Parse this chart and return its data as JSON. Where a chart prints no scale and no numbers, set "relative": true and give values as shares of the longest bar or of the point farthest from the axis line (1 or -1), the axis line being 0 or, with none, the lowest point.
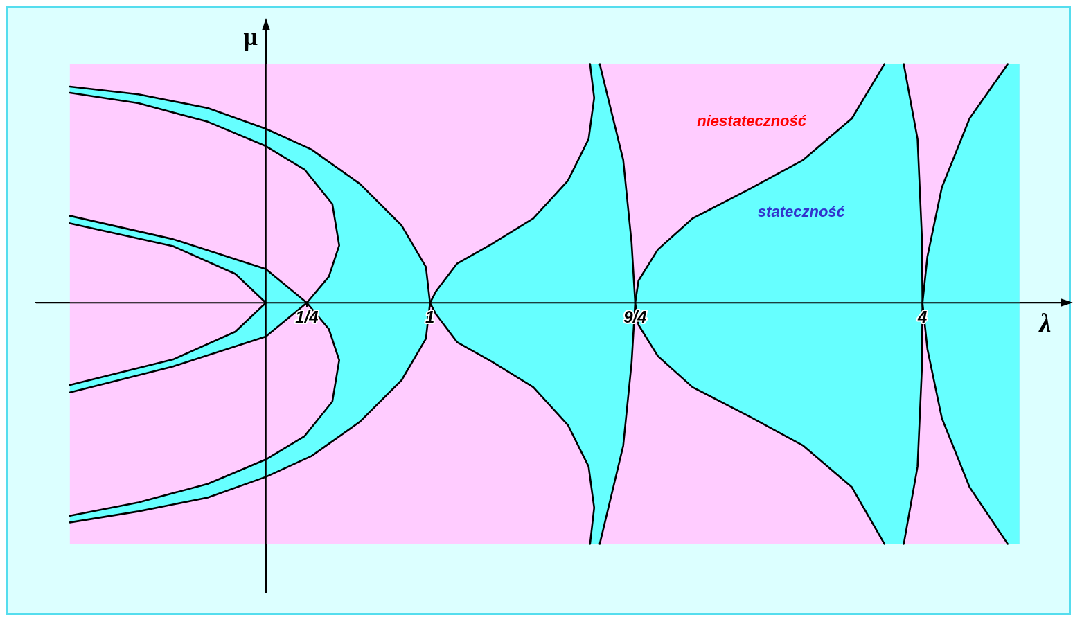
{
  "chart_data": {
    "type": "area",
    "relative": true,
    "xlabel": "λ",
    "ylabel": "μ",
    "xlim": [
      -1.4,
      4.9
    ],
    "ylim": [
      -1.2,
      1.17
    ],
    "xticks": [
      {
        "value": 0.25,
        "label": "1/4"
      },
      {
        "value": 1,
        "label": "1"
      },
      {
        "value": 2.25,
        "label": "9/4"
      },
      {
        "value": 4,
        "label": "4"
      }
    ],
    "grid": false,
    "legend": false,
    "marker": "none",
    "annotations": [
      "niestateczność",
      "stateczność"
    ],
    "series": [
      {
        "color": "#ffccff",
        "x": [
          -1.194,
          4.591,
          4.591,
          -1.194
        ],
        "values": [
          0.99,
          0.99,
          -1,
          -1
        ]
      },
      {
        "color": "#66ffff",
        "x": [
          -1.194,
          -0.776,
          -0.354,
          0,
          0.278,
          0.574,
          0.827,
          0.975,
          1,
          0.975,
          0.827,
          0.574,
          0.278,
          0,
          -0.354,
          -0.776,
          -1.194,
          -1.194,
          -0.776,
          -0.354,
          0,
          0.236,
          0.405,
          0.447,
          0.384,
          0.25,
          0.384,
          0.447,
          0.405,
          0.236,
          0,
          -0.354,
          -0.776,
          -1.194
        ],
        "values": [
          0.897,
          0.865,
          0.808,
          0.722,
          0.636,
          0.493,
          0.321,
          0.149,
          0,
          -0.149,
          -0.321,
          -0.493,
          -0.636,
          -0.722,
          -0.808,
          -0.865,
          -0.911,
          -0.883,
          -0.828,
          -0.751,
          -0.65,
          -0.553,
          -0.41,
          -0.238,
          -0.109,
          0,
          0.109,
          0.238,
          0.41,
          0.553,
          0.65,
          0.751,
          0.828,
          0.871
        ]
      },
      {
        "color": "#66ffff",
        "x": [
          -1.194,
          -0.565,
          0,
          0.25,
          0,
          -0.565,
          -1.194,
          -1.194,
          -0.565,
          -0.186,
          0,
          -0.186,
          -0.565,
          -1.194
        ],
        "values": [
          0.361,
          0.264,
          0.14,
          0,
          -0.14,
          -0.264,
          -0.372,
          -0.341,
          -0.235,
          -0.12,
          0,
          0.12,
          0.235,
          0.33
        ]
      },
      {
        "color": "#66ffff",
        "x": [
          1.975,
          2,
          1.966,
          1.84,
          1.629,
          1.376,
          1.165,
          1.038,
          1,
          1.038,
          1.165,
          1.376,
          1.629,
          1.84,
          1.966,
          2,
          1.975,
          2.034,
          2.177,
          2.228,
          2.25,
          2.228,
          2.177,
          2.034
        ],
        "values": [
          0.99,
          0.85,
          0.679,
          0.507,
          0.35,
          0.244,
          0.163,
          0.049,
          0,
          -0.049,
          -0.163,
          -0.244,
          -0.35,
          -0.507,
          -0.679,
          -0.85,
          -1,
          -1,
          -0.593,
          -0.249,
          0,
          0.249,
          0.593,
          0.99
        ]
      },
      {
        "color": "#66ffff",
        "x": [
          3.768,
          3.57,
          3.274,
          2.949,
          2.599,
          2.388,
          2.27,
          2.25,
          2.27,
          2.388,
          2.599,
          2.949,
          3.274,
          3.57,
          3.768,
          3.886,
          3.97,
          3.996,
          4,
          3.996,
          3.97,
          3.886
        ],
        "values": [
          0.99,
          0.765,
          0.593,
          0.473,
          0.35,
          0.221,
          0.092,
          0,
          -0.092,
          -0.221,
          -0.35,
          -0.473,
          -0.593,
          -0.765,
          -1,
          -1,
          -0.679,
          -0.278,
          0,
          0.278,
          0.679,
          0.99
        ]
      },
      {
        "color": "#66ffff",
        "x": [
          4.519,
          4.287,
          4.118,
          4.03,
          4,
          4.03,
          4.118,
          4.287,
          4.519,
          4.591,
          4.591
        ],
        "values": [
          0.99,
          0.765,
          0.479,
          0.192,
          0,
          -0.192,
          -0.479,
          -0.765,
          -1,
          -1,
          0.99
        ]
      }
    ]
  }
}
